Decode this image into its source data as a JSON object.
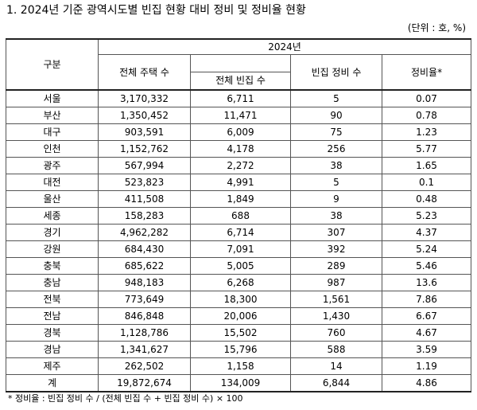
{
  "title": "1. 2024년 기준 광역시도별 빈집 현황 대비 정비 및 정비율 현황",
  "unit": "(단위 : 호, %)",
  "header": {
    "stub": "구분",
    "year": "2024년",
    "total_housing": "전체 주택 수",
    "total_vacant": "전체 빈집 수",
    "cleared": "빈집 정비 수",
    "rate": "정비율*"
  },
  "rows": [
    {
      "region": "서울",
      "housing": "3,170,332",
      "vacant": "6,711",
      "cleared": "5",
      "rate": "0.07"
    },
    {
      "region": "부산",
      "housing": "1,350,452",
      "vacant": "11,471",
      "cleared": "90",
      "rate": "0.78"
    },
    {
      "region": "대구",
      "housing": "903,591",
      "vacant": "6,009",
      "cleared": "75",
      "rate": "1.23"
    },
    {
      "region": "인천",
      "housing": "1,152,762",
      "vacant": "4,178",
      "cleared": "256",
      "rate": "5.77"
    },
    {
      "region": "광주",
      "housing": "567,994",
      "vacant": "2,272",
      "cleared": "38",
      "rate": "1.65"
    },
    {
      "region": "대전",
      "housing": "523,823",
      "vacant": "4,991",
      "cleared": "5",
      "rate": "0.1"
    },
    {
      "region": "울산",
      "housing": "411,508",
      "vacant": "1,849",
      "cleared": "9",
      "rate": "0.48"
    },
    {
      "region": "세종",
      "housing": "158,283",
      "vacant": "688",
      "cleared": "38",
      "rate": "5.23"
    },
    {
      "region": "경기",
      "housing": "4,962,282",
      "vacant": "6,714",
      "cleared": "307",
      "rate": "4.37"
    },
    {
      "region": "강원",
      "housing": "684,430",
      "vacant": "7,091",
      "cleared": "392",
      "rate": "5.24"
    },
    {
      "region": "충북",
      "housing": "685,622",
      "vacant": "5,005",
      "cleared": "289",
      "rate": "5.46"
    },
    {
      "region": "충남",
      "housing": "948,183",
      "vacant": "6,268",
      "cleared": "987",
      "rate": "13.6"
    },
    {
      "region": "전북",
      "housing": "773,649",
      "vacant": "18,300",
      "cleared": "1,561",
      "rate": "7.86"
    },
    {
      "region": "전남",
      "housing": "846,848",
      "vacant": "20,006",
      "cleared": "1,430",
      "rate": "6.67"
    },
    {
      "region": "경북",
      "housing": "1,128,786",
      "vacant": "15,502",
      "cleared": "760",
      "rate": "4.67"
    },
    {
      "region": "경남",
      "housing": "1,341,627",
      "vacant": "15,796",
      "cleared": "588",
      "rate": "3.59"
    },
    {
      "region": "제주",
      "housing": "262,502",
      "vacant": "1,158",
      "cleared": "14",
      "rate": "1.19"
    },
    {
      "region": "계",
      "housing": "19,872,674",
      "vacant": "134,009",
      "cleared": "6,844",
      "rate": "4.86"
    }
  ],
  "note": "* 정비율 : 빈집 정비 수 / (전체 빈집 수 + 빈집 정비 수) × 100"
}
